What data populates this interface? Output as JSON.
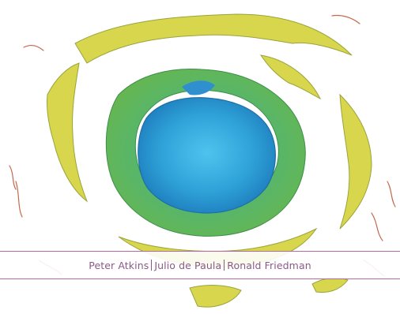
{
  "cover": {
    "authors": [
      "Peter Atkins",
      "Julio de Paula",
      "Ronald Friedman"
    ],
    "colors": {
      "band_line": "#b96aa0",
      "author_text": "#8a5a86",
      "blue_core": "#39a8d6",
      "green_ring": "#5fb06a",
      "yellow_ring": "#d9d74a",
      "rust_flecks": "#c46b4f"
    }
  }
}
